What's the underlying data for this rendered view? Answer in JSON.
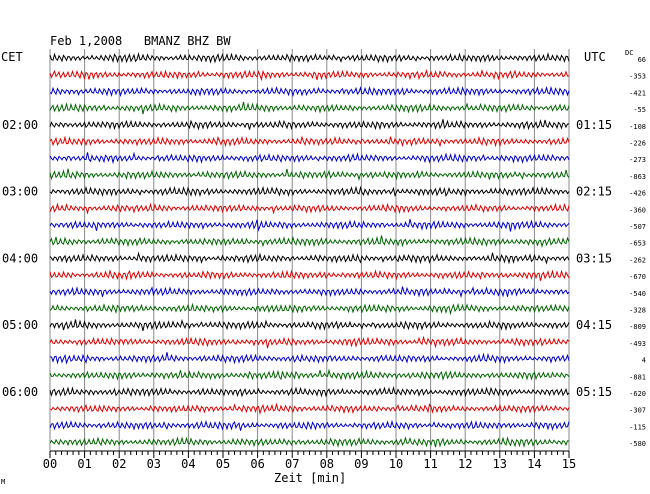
{
  "header": {
    "title": "Feb 1,2008   BMANZ BHZ BW",
    "left_zone": "CET",
    "right_zone": "UTC",
    "dc_label": "DC",
    "corner_mark": "M"
  },
  "colors": {
    "black": "#000000",
    "red": "#dd0000",
    "blue": "#0000cc",
    "green": "#006600",
    "grid": "#888888"
  },
  "chart_data": {
    "type": "line",
    "title": "Feb 1,2008   BMANZ BHZ BW",
    "xlabel": "Zeit [min]",
    "x_ticks": [
      "00",
      "01",
      "02",
      "03",
      "04",
      "05",
      "06",
      "07",
      "08",
      "09",
      "10",
      "11",
      "12",
      "13",
      "14",
      "15"
    ],
    "xlim": [
      0,
      15
    ],
    "trace_count": 24,
    "trace_color_cycle": [
      "black",
      "red",
      "blue",
      "green"
    ],
    "left_hour_labels": [
      {
        "trace": 4,
        "label": "02:00"
      },
      {
        "trace": 8,
        "label": "03:00"
      },
      {
        "trace": 12,
        "label": "04:00"
      },
      {
        "trace": 16,
        "label": "05:00"
      },
      {
        "trace": 20,
        "label": "06:00"
      }
    ],
    "right_time_labels": [
      {
        "trace": 4,
        "label": "01:15"
      },
      {
        "trace": 8,
        "label": "02:15"
      },
      {
        "trace": 12,
        "label": "03:15"
      },
      {
        "trace": 16,
        "label": "04:15"
      },
      {
        "trace": 20,
        "label": "05:15"
      }
    ],
    "dc_offsets": [
      "66",
      "-353",
      "-421",
      "-55",
      "-108",
      "-226",
      "-273",
      "-863",
      "-426",
      "-360",
      "-507",
      "-653",
      "-262",
      "-670",
      "-540",
      "-328",
      "-809",
      "-493",
      "4",
      "-881",
      "-620",
      "-307",
      "-115",
      "-580"
    ]
  }
}
